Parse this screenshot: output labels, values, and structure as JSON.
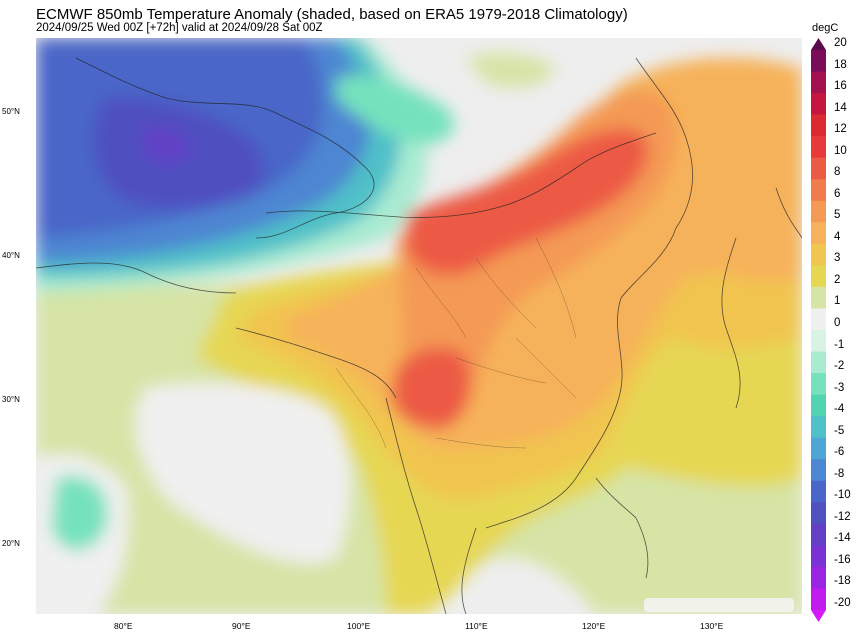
{
  "header": {
    "title": "ECMWF 850mb Temperature Anomaly (shaded, based on ERA5 1979-2018 Climatology)",
    "subtitle": "2024/09/25 Wed 00Z [+72h] valid at 2024/09/28 Sat 00Z"
  },
  "colorbar": {
    "unit": "degC",
    "labels": [
      "20",
      "18",
      "16",
      "14",
      "12",
      "10",
      "8",
      "6",
      "5",
      "4",
      "3",
      "2",
      "1",
      "0",
      "-1",
      "-2",
      "-3",
      "-4",
      "-5",
      "-6",
      "-8",
      "-10",
      "-12",
      "-14",
      "-16",
      "-18",
      "-20"
    ],
    "colors": [
      "#7a0d5a",
      "#a3124e",
      "#c5163f",
      "#dc2a33",
      "#e8393a",
      "#ec5a45",
      "#f07b4b",
      "#f49a55",
      "#f6b25a",
      "#f1c550",
      "#e6d753",
      "#d6e4a6",
      "#f0f0f0",
      "#d8f3e4",
      "#a9ebd1",
      "#76e2bd",
      "#52d3b2",
      "#50c0c8",
      "#4ea6d6",
      "#4d86d2",
      "#4a66c8",
      "#5050c0",
      "#6240c6",
      "#7a32d4",
      "#9a24e2",
      "#c01cef"
    ]
  },
  "axes": {
    "lat_labels": [
      "50°N",
      "40°N",
      "30°N",
      "20°N"
    ],
    "lon_labels": [
      "80°E",
      "90°E",
      "100°E",
      "110°E",
      "120°E",
      "130°E"
    ]
  },
  "icons": {
    "colorbar_arrow": "triangle-up-icon"
  }
}
